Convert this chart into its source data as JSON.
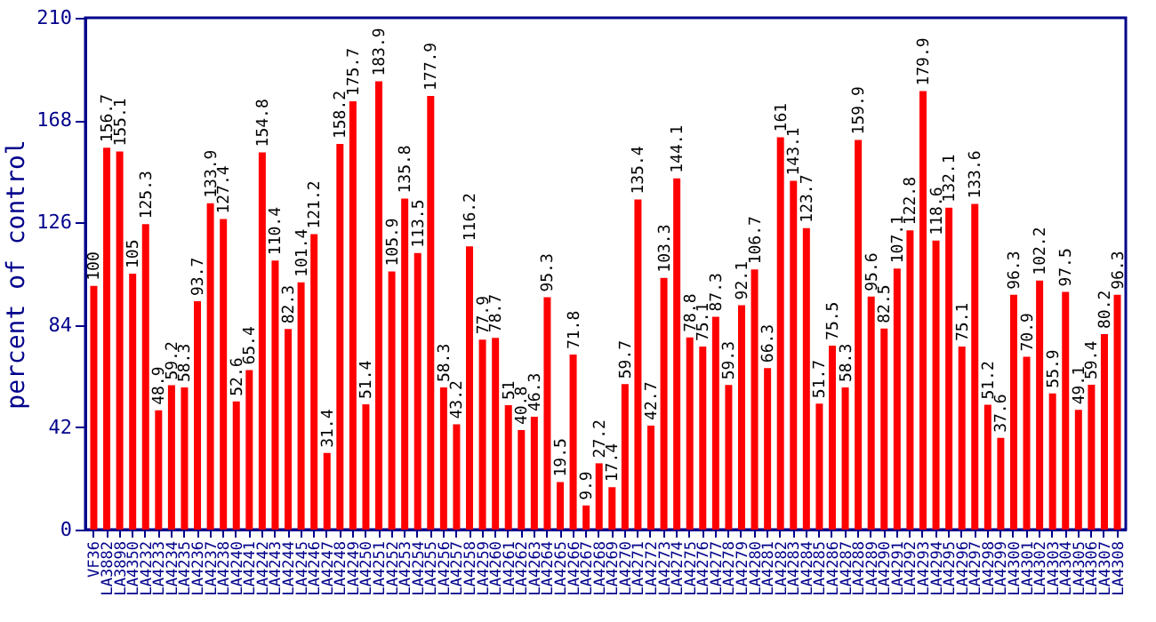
{
  "chart_data": {
    "type": "bar",
    "ylabel": "percent of control",
    "categories": [
      "VF36",
      "LA3882",
      "LA3898",
      "LA4350",
      "LA4232",
      "LA4233",
      "LA4234",
      "LA4235",
      "LA4236",
      "LA4237",
      "LA4238",
      "LA4240",
      "LA4241",
      "LA4242",
      "LA4243",
      "LA4244",
      "LA4245",
      "LA4246",
      "LA4247",
      "LA4248",
      "LA4249",
      "LA4250",
      "LA4251",
      "LA4252",
      "LA4253",
      "LA4254",
      "LA4255",
      "LA4256",
      "LA4257",
      "LA4258",
      "LA4259",
      "LA4260",
      "LA4261",
      "LA4262",
      "LA4263",
      "LA4264",
      "LA4265",
      "LA4266",
      "LA4267",
      "LA4268",
      "LA4269",
      "LA4270",
      "LA4271",
      "LA4272",
      "LA4273",
      "LA4274",
      "LA4275",
      "LA4276",
      "LA4277",
      "LA4278",
      "LA4279",
      "LA4280",
      "LA4281",
      "LA4282",
      "LA4283",
      "LA4284",
      "LA4285",
      "LA4286",
      "LA4287",
      "LA4288",
      "LA4289",
      "LA4290",
      "LA4291",
      "LA4292",
      "LA4293",
      "LA4294",
      "LA4295",
      "LA4296",
      "LA4297",
      "LA4298",
      "LA4299",
      "LA4300",
      "LA4301",
      "LA4302",
      "LA4303",
      "LA4304",
      "LA4305",
      "LA4306",
      "LA4307",
      "LA4308"
    ],
    "values": [
      100,
      156.7,
      155.1,
      105,
      125.3,
      48.9,
      59.2,
      58.3,
      93.7,
      133.9,
      127.4,
      52.6,
      65.4,
      154.8,
      110.4,
      82.3,
      101.4,
      121.2,
      31.4,
      158.2,
      175.7,
      51.4,
      183.9,
      105.9,
      135.8,
      113.5,
      177.9,
      58.3,
      43.2,
      116.2,
      77.9,
      78.7,
      51,
      40.8,
      46.3,
      95.3,
      19.5,
      71.8,
      9.9,
      27.2,
      17.4,
      59.7,
      135.4,
      42.7,
      103.3,
      144.1,
      78.8,
      75.1,
      87.3,
      59.3,
      92.1,
      106.7,
      66.3,
      161,
      143.1,
      123.7,
      51.7,
      75.5,
      58.3,
      159.9,
      95.6,
      82.5,
      107.1,
      122.8,
      179.9,
      118.6,
      132.1,
      75.1,
      133.6,
      51.2,
      37.6,
      96.3,
      70.9,
      102.2,
      55.9,
      97.5,
      49.1,
      59.4,
      80.2,
      96.3
    ],
    "color": "#ff0000",
    "ylim": [
      0,
      210
    ],
    "yticks": [
      0,
      42,
      84,
      126,
      168,
      210
    ],
    "data_labels": true,
    "grid": false
  }
}
